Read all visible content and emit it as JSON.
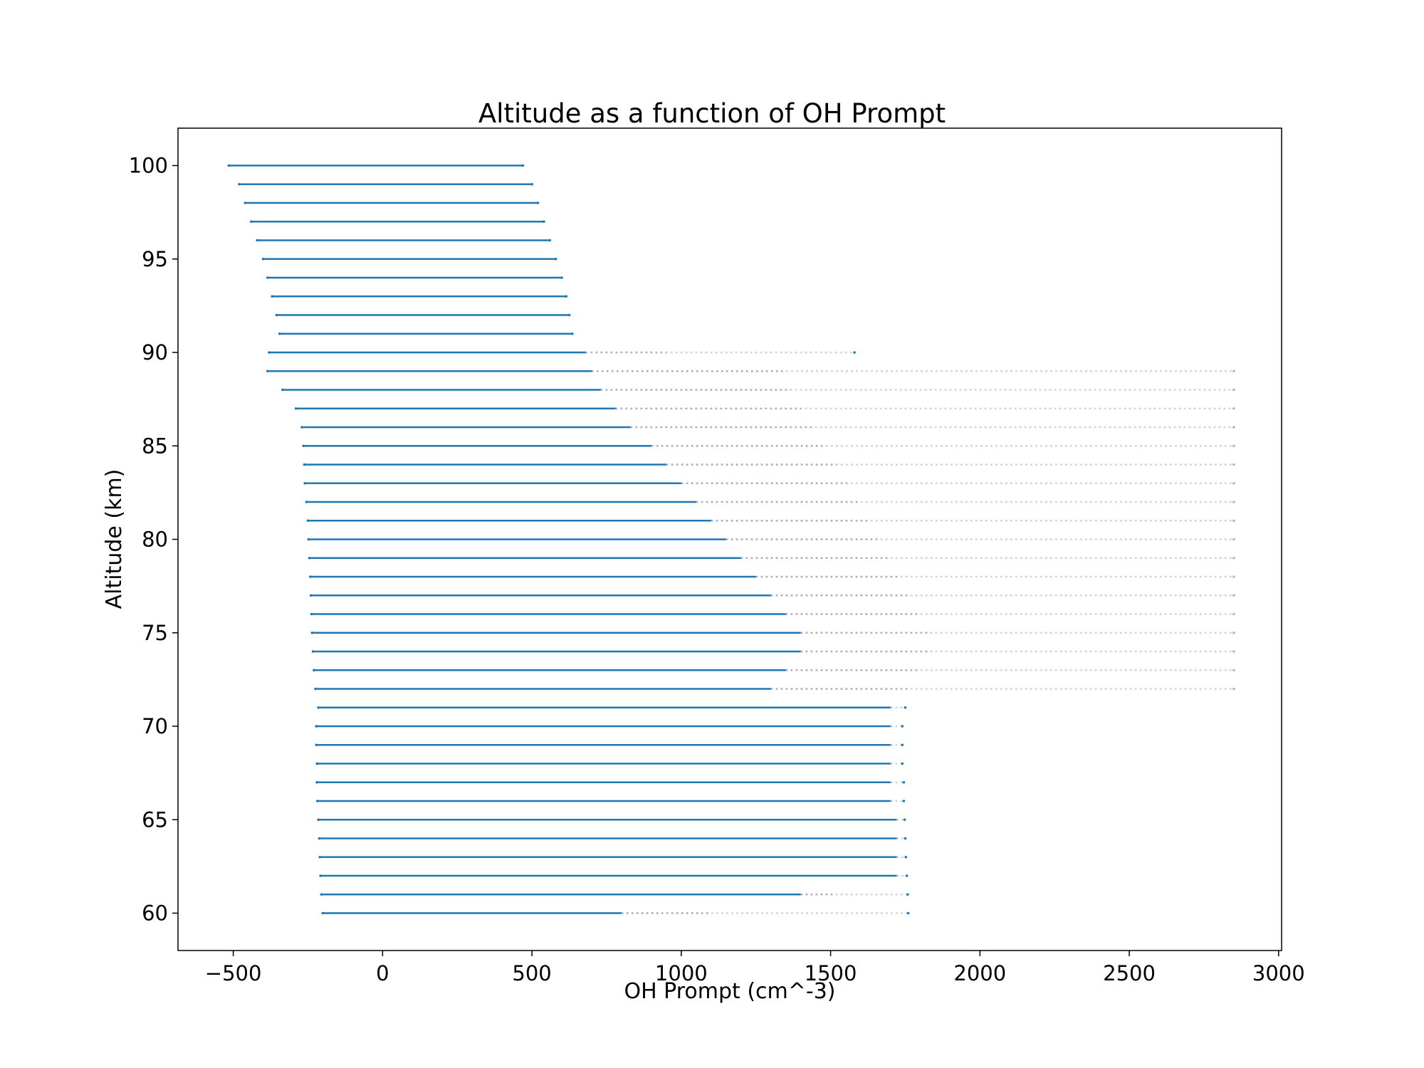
{
  "chart_data": {
    "type": "scatter",
    "title": "Altitude as a function of OH Prompt",
    "xlabel": "OH Prompt (cm^-3)",
    "ylabel": "Altitude (km)",
    "xlim": [
      -685,
      3010
    ],
    "ylim": [
      58,
      102
    ],
    "xticks": [
      -500,
      0,
      500,
      1000,
      1500,
      2000,
      2500,
      3000
    ],
    "xtick_labels": [
      "−500",
      "0",
      "500",
      "1000",
      "1500",
      "2000",
      "2500",
      "3000"
    ],
    "yticks": [
      60,
      65,
      70,
      75,
      80,
      85,
      90,
      95,
      100
    ],
    "ytick_labels": [
      "60",
      "65",
      "70",
      "75",
      "80",
      "85",
      "90",
      "95",
      "100"
    ],
    "grid": false,
    "legend": "none",
    "colors": {
      "dense": "#1f77b4",
      "sparse": "#b4b4b4",
      "mid": "#7a6fb8"
    },
    "series": [
      {
        "altitude": [
          100,
          99,
          98,
          97,
          96,
          95,
          94,
          93,
          92,
          91,
          90,
          89,
          88,
          87,
          86,
          85,
          84,
          83,
          82,
          81,
          80,
          79,
          78,
          77,
          76,
          75,
          74,
          73,
          72,
          71,
          70,
          69,
          68,
          67,
          66,
          65,
          64,
          63,
          62,
          61,
          60
        ],
        "x_min": [
          -515,
          -480,
          -460,
          -440,
          -420,
          -400,
          -385,
          -370,
          -355,
          -345,
          -380,
          -385,
          -335,
          -290,
          -270,
          -265,
          -262,
          -260,
          -255,
          -250,
          -248,
          -245,
          -242,
          -240,
          -238,
          -236,
          -233,
          -230,
          -225,
          -215,
          -222,
          -222,
          -220,
          -220,
          -218,
          -215,
          -212,
          -210,
          -208,
          -205,
          -200
        ],
        "x_dense_end": [
          475,
          500,
          520,
          540,
          560,
          580,
          600,
          615,
          630,
          640,
          680,
          700,
          730,
          780,
          830,
          900,
          950,
          1000,
          1050,
          1100,
          1150,
          1200,
          1250,
          1300,
          1350,
          1400,
          1400,
          1350,
          1300,
          1700,
          1700,
          1700,
          1700,
          1700,
          1700,
          1720,
          1720,
          1720,
          1720,
          1400,
          800
        ],
        "x_max": [
          470,
          500,
          520,
          540,
          560,
          580,
          600,
          615,
          625,
          635,
          1580,
          2850,
          2850,
          2850,
          2850,
          2850,
          2850,
          2850,
          2850,
          2850,
          2850,
          2850,
          2850,
          2850,
          2850,
          2850,
          2850,
          2850,
          2850,
          1750,
          1740,
          1740,
          1740,
          1745,
          1745,
          1748,
          1750,
          1752,
          1755,
          1758,
          1760
        ]
      }
    ]
  }
}
